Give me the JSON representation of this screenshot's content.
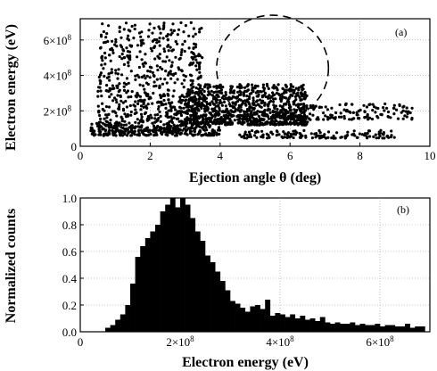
{
  "chart_data": [
    {
      "type": "scatter",
      "panel_label": "(a)",
      "xlabel": "Ejection angle θ (deg)",
      "ylabel": "Electron energy (eV)",
      "xlim": [
        0,
        10
      ],
      "ylim": [
        0,
        720000000.0
      ],
      "x_ticks": [
        {
          "value": 0,
          "label": "0"
        },
        {
          "value": 2,
          "label": "2"
        },
        {
          "value": 4,
          "label": "4"
        },
        {
          "value": 6,
          "label": "6"
        },
        {
          "value": 8,
          "label": "8"
        },
        {
          "value": 10,
          "label": "10"
        }
      ],
      "y_ticks": [
        {
          "value": 0,
          "label": "0",
          "exp": ""
        },
        {
          "value": 200000000.0,
          "label": "2×10",
          "exp": "8"
        },
        {
          "value": 400000000.0,
          "label": "4×10",
          "exp": "8"
        },
        {
          "value": 600000000.0,
          "label": "6×10",
          "exp": "8"
        }
      ],
      "grid": true,
      "marker_color": "#000000",
      "clusters": [
        {
          "x_min": 0.5,
          "x_max": 3.5,
          "y_min": 80000000.0,
          "y_max": 700000000.0,
          "n": 700
        },
        {
          "x_min": 3.0,
          "x_max": 6.5,
          "y_min": 120000000.0,
          "y_max": 350000000.0,
          "n": 900
        },
        {
          "x_min": 5.5,
          "x_max": 9.5,
          "y_min": 150000000.0,
          "y_max": 240000000.0,
          "n": 160
        },
        {
          "x_min": 4.5,
          "x_max": 9.0,
          "y_min": 45000000.0,
          "y_max": 90000000.0,
          "n": 140
        },
        {
          "x_min": 0.3,
          "x_max": 4.0,
          "y_min": 60000000.0,
          "y_max": 140000000.0,
          "n": 260
        }
      ],
      "annotation": {
        "shape": "dashed-ellipse",
        "center": [
          5.5,
          440000000.0
        ],
        "radius_x": 1.6,
        "radius_y": 300000000.0
      }
    },
    {
      "type": "bar",
      "panel_label": "(b)",
      "xlabel": "Electron energy (eV)",
      "ylabel": "Normalized counts",
      "xlim": [
        0,
        700000000.0
      ],
      "ylim": [
        0,
        1.0
      ],
      "x_ticks": [
        {
          "value": 0,
          "label": "0",
          "exp": ""
        },
        {
          "value": 200000000.0,
          "label": "2×10",
          "exp": "8"
        },
        {
          "value": 400000000.0,
          "label": "4×10",
          "exp": "8"
        },
        {
          "value": 600000000.0,
          "label": "6×10",
          "exp": "8"
        }
      ],
      "y_ticks": [
        {
          "value": 0.0,
          "label": "0.0"
        },
        {
          "value": 0.2,
          "label": "0.2"
        },
        {
          "value": 0.4,
          "label": "0.4"
        },
        {
          "value": 0.6,
          "label": "0.6"
        },
        {
          "value": 0.8,
          "label": "0.8"
        },
        {
          "value": 1.0,
          "label": "1.0"
        }
      ],
      "grid": true,
      "bar_color": "#000000",
      "bin_width": 10000000.0,
      "bin_start": 50000000.0,
      "values": [
        0.03,
        0.05,
        0.09,
        0.13,
        0.2,
        0.36,
        0.56,
        0.64,
        0.7,
        0.75,
        0.8,
        0.9,
        0.95,
        1.0,
        0.93,
        1.0,
        0.95,
        0.85,
        0.75,
        0.68,
        0.57,
        0.52,
        0.45,
        0.38,
        0.31,
        0.23,
        0.21,
        0.18,
        0.15,
        0.19,
        0.2,
        0.17,
        0.24,
        0.12,
        0.14,
        0.13,
        0.11,
        0.13,
        0.1,
        0.12,
        0.09,
        0.1,
        0.08,
        0.11,
        0.07,
        0.06,
        0.07,
        0.06,
        0.06,
        0.07,
        0.05,
        0.06,
        0.05,
        0.05,
        0.06,
        0.04,
        0.05,
        0.05,
        0.04,
        0.04,
        0.06,
        0.03,
        0.04,
        0.04
      ]
    }
  ]
}
